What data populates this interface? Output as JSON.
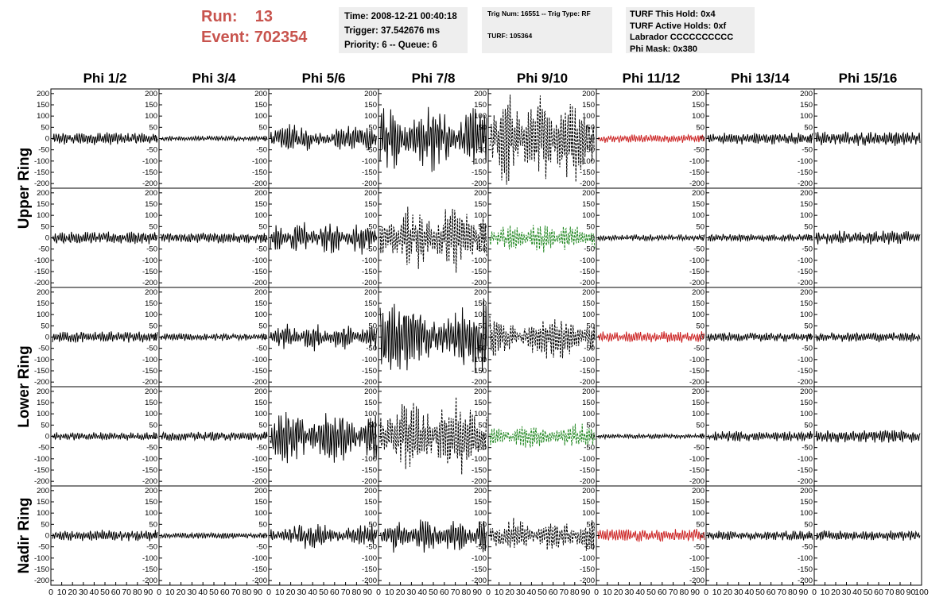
{
  "header": {
    "run_label": "Run:",
    "run_value": "13",
    "event_label": "Event:",
    "event_value": "702354",
    "time": "Time: 2008-12-21 00:40:18",
    "trigger": "Trigger: 37.542676 ms",
    "priority": "Priority: 6 -- Queue: 6",
    "trig_num": "Trig Num: 16551 -- Trig Type: RF",
    "turf": "TURF: 105364",
    "turf_hold": "TURF This Hold: 0x4",
    "turf_active": "TURF Active Holds: 0xf",
    "labrador": "Labrador CCCCCCCCCC",
    "phi_mask": "Phi Mask: 0x380"
  },
  "colors": {
    "normal": "#000000",
    "red": "#cc2222",
    "green": "#228822",
    "title_red": "#c8544e",
    "panel_bg": "#eeeeee"
  },
  "chart_data": {
    "type": "line",
    "columns": [
      "Phi 1/2",
      "Phi 3/4",
      "Phi 5/6",
      "Phi 7/8",
      "Phi 9/10",
      "Phi 11/12",
      "Phi 13/14",
      "Phi 15/16"
    ],
    "row_groups": [
      {
        "label": "Upper Ring",
        "rows": [
          0,
          1
        ]
      },
      {
        "label": "Lower Ring",
        "rows": [
          2,
          3
        ]
      },
      {
        "label": "Nadir Ring",
        "rows": [
          4
        ]
      }
    ],
    "ylim": [
      -210,
      210
    ],
    "yticks": [
      -200,
      -150,
      -100,
      -50,
      0,
      50,
      100,
      150,
      200
    ],
    "xlim": [
      0,
      100
    ],
    "xtick_labels": [
      "0",
      "10",
      "20",
      "30",
      "40",
      "50",
      "60",
      "70",
      "80",
      "90",
      "100"
    ],
    "panels": [
      [
        {
          "amp": 24,
          "style": "solid",
          "color": "normal"
        },
        {
          "amp": 14,
          "style": "solid",
          "color": "normal"
        },
        {
          "amp": 60,
          "style": "solid",
          "color": "normal"
        },
        {
          "amp": 170,
          "style": "solid",
          "color": "normal"
        },
        {
          "amp": 190,
          "style": "dashed",
          "color": "normal"
        },
        {
          "amp": 16,
          "style": "solid",
          "color": "red"
        },
        {
          "amp": 22,
          "style": "solid",
          "color": "normal"
        },
        {
          "amp": 28,
          "style": "solid",
          "color": "normal"
        }
      ],
      [
        {
          "amp": 24,
          "style": "solid",
          "color": "normal"
        },
        {
          "amp": 22,
          "style": "solid",
          "color": "normal"
        },
        {
          "amp": 90,
          "style": "solid",
          "color": "normal"
        },
        {
          "amp": 150,
          "style": "dashed",
          "color": "normal"
        },
        {
          "amp": 60,
          "style": "dashed",
          "color": "green"
        },
        {
          "amp": 14,
          "style": "solid",
          "color": "normal"
        },
        {
          "amp": 24,
          "style": "solid",
          "color": "normal"
        },
        {
          "amp": 28,
          "style": "solid",
          "color": "normal"
        }
      ],
      [
        {
          "amp": 22,
          "style": "solid",
          "color": "normal"
        },
        {
          "amp": 14,
          "style": "solid",
          "color": "normal"
        },
        {
          "amp": 60,
          "style": "solid",
          "color": "normal"
        },
        {
          "amp": 150,
          "style": "solid",
          "color": "normal"
        },
        {
          "amp": 90,
          "style": "dashed",
          "color": "normal"
        },
        {
          "amp": 22,
          "style": "solid",
          "color": "red"
        },
        {
          "amp": 18,
          "style": "solid",
          "color": "normal"
        },
        {
          "amp": 20,
          "style": "solid",
          "color": "normal"
        }
      ],
      [
        {
          "amp": 20,
          "style": "solid",
          "color": "normal"
        },
        {
          "amp": 18,
          "style": "solid",
          "color": "normal"
        },
        {
          "amp": 110,
          "style": "solid",
          "color": "normal"
        },
        {
          "amp": 150,
          "style": "dashed",
          "color": "normal"
        },
        {
          "amp": 50,
          "style": "dashed",
          "color": "green"
        },
        {
          "amp": 14,
          "style": "solid",
          "color": "normal"
        },
        {
          "amp": 20,
          "style": "solid",
          "color": "normal"
        },
        {
          "amp": 24,
          "style": "solid",
          "color": "normal"
        }
      ],
      [
        {
          "amp": 22,
          "style": "solid",
          "color": "normal"
        },
        {
          "amp": 12,
          "style": "solid",
          "color": "normal"
        },
        {
          "amp": 50,
          "style": "solid",
          "color": "normal"
        },
        {
          "amp": 80,
          "style": "solid",
          "color": "normal"
        },
        {
          "amp": 70,
          "style": "dashed",
          "color": "normal"
        },
        {
          "amp": 26,
          "style": "solid",
          "color": "red"
        },
        {
          "amp": 18,
          "style": "solid",
          "color": "normal"
        },
        {
          "amp": 22,
          "style": "solid",
          "color": "normal"
        }
      ]
    ]
  }
}
